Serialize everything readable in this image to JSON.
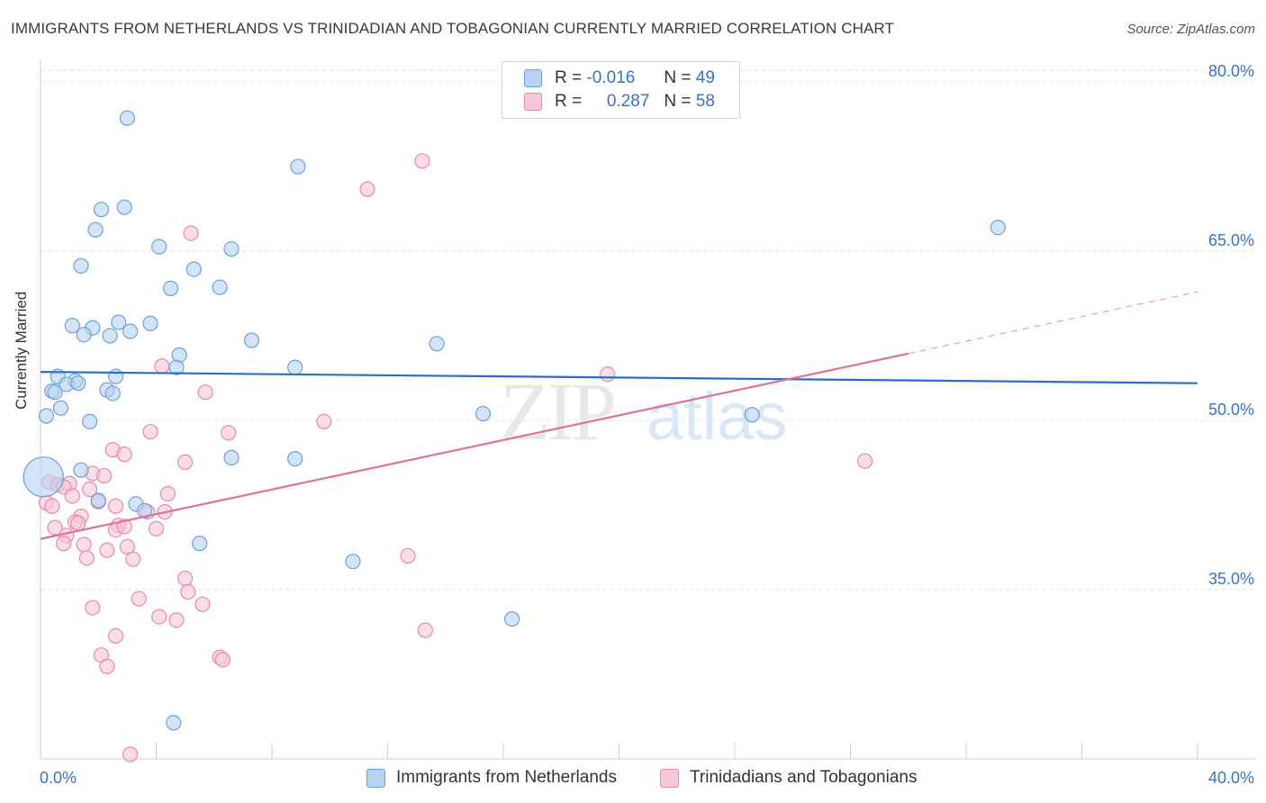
{
  "title": "IMMIGRANTS FROM NETHERLANDS VS TRINIDADIAN AND TOBAGONIAN CURRENTLY MARRIED CORRELATION CHART",
  "source": "Source: ZipAtlas.com",
  "watermark": {
    "zip": "ZIP",
    "atlas": "atlas"
  },
  "legend": {
    "r_label": "R =",
    "n_label": "N =",
    "series1": {
      "r": "-0.016",
      "n": "49"
    },
    "series2": {
      "r": "0.287",
      "n": "58"
    }
  },
  "colors": {
    "blue_fill": "#b8d2f2",
    "blue_stroke": "#6f9fdb",
    "blue_line": "#2a6fc7",
    "pink_fill": "#f8c6d6",
    "pink_stroke": "#e889a8",
    "pink_line": "#e0729a",
    "tick_label": "#3a72c8",
    "grid": "#e3e3e3"
  },
  "chart_data": {
    "type": "scatter",
    "title": "IMMIGRANTS FROM NETHERLANDS VS TRINIDADIAN AND TOBAGONIAN CURRENTLY MARRIED CORRELATION CHART",
    "ylabel": "Currently Married",
    "xlabel": "",
    "xlim": [
      0,
      40
    ],
    "ylim": [
      20,
      82
    ],
    "x_tick_labels": [
      "0.0%",
      "40.0%"
    ],
    "y_ticks": [
      35,
      50,
      65,
      80
    ],
    "y_tick_labels": [
      "35.0%",
      "50.0%",
      "65.0%",
      "80.0%"
    ],
    "grid": true,
    "series": [
      {
        "name": "Immigrants from Netherlands",
        "r": -0.016,
        "n": 49,
        "trend": {
          "x": [
            0,
            40
          ],
          "y": [
            54.3,
            53.3
          ],
          "dashed_from": null
        },
        "points": [
          [
            0.1,
            45.0,
            "big"
          ],
          [
            3.0,
            76.8
          ],
          [
            8.9,
            72.5
          ],
          [
            2.1,
            68.7
          ],
          [
            2.9,
            68.9
          ],
          [
            1.9,
            66.9
          ],
          [
            4.1,
            65.4
          ],
          [
            6.6,
            65.2
          ],
          [
            1.4,
            63.7
          ],
          [
            5.3,
            63.4
          ],
          [
            4.5,
            61.7
          ],
          [
            6.2,
            61.8
          ],
          [
            1.1,
            58.4
          ],
          [
            1.8,
            58.2
          ],
          [
            2.7,
            58.7
          ],
          [
            3.8,
            58.6
          ],
          [
            3.1,
            57.9
          ],
          [
            1.5,
            57.6
          ],
          [
            2.4,
            57.5
          ],
          [
            7.3,
            57.1
          ],
          [
            13.7,
            56.8
          ],
          [
            4.8,
            55.8
          ],
          [
            4.7,
            54.7
          ],
          [
            8.8,
            54.7
          ],
          [
            0.6,
            53.9
          ],
          [
            2.6,
            53.9
          ],
          [
            1.2,
            53.5
          ],
          [
            0.9,
            53.2
          ],
          [
            0.4,
            52.6
          ],
          [
            0.5,
            52.5
          ],
          [
            2.3,
            52.7
          ],
          [
            2.5,
            52.4
          ],
          [
            0.7,
            51.1
          ],
          [
            0.2,
            50.4
          ],
          [
            1.7,
            49.9
          ],
          [
            15.3,
            50.6
          ],
          [
            24.6,
            50.5
          ],
          [
            6.6,
            46.7
          ],
          [
            8.8,
            46.6
          ],
          [
            1.4,
            45.6
          ],
          [
            2.0,
            42.9
          ],
          [
            3.3,
            42.6
          ],
          [
            3.6,
            42.0
          ],
          [
            5.5,
            39.1
          ],
          [
            10.8,
            37.5
          ],
          [
            16.3,
            32.4
          ],
          [
            4.6,
            23.2
          ],
          [
            33.1,
            67.1
          ],
          [
            1.3,
            53.3
          ]
        ]
      },
      {
        "name": "Trinidadians and Tobagonians",
        "r": 0.287,
        "n": 58,
        "trend": {
          "x": [
            0,
            40
          ],
          "y": [
            39.5,
            61.4
          ],
          "dashed_from": 30
        },
        "points": [
          [
            13.2,
            73.0
          ],
          [
            11.3,
            70.5
          ],
          [
            5.2,
            66.6
          ],
          [
            4.2,
            54.8
          ],
          [
            19.6,
            54.1
          ],
          [
            5.7,
            52.5
          ],
          [
            9.8,
            49.9
          ],
          [
            3.8,
            49.0
          ],
          [
            6.5,
            48.9
          ],
          [
            2.5,
            47.4
          ],
          [
            2.9,
            47.0
          ],
          [
            5.0,
            46.3
          ],
          [
            28.5,
            46.4
          ],
          [
            1.8,
            45.3
          ],
          [
            2.2,
            45.1
          ],
          [
            0.3,
            44.5
          ],
          [
            0.6,
            44.3
          ],
          [
            1.0,
            44.4
          ],
          [
            0.8,
            44.1
          ],
          [
            1.7,
            43.9
          ],
          [
            4.4,
            43.5
          ],
          [
            1.1,
            43.3
          ],
          [
            0.2,
            42.7
          ],
          [
            0.4,
            42.4
          ],
          [
            2.6,
            42.4
          ],
          [
            2.0,
            42.8
          ],
          [
            3.7,
            41.9
          ],
          [
            1.4,
            41.5
          ],
          [
            4.3,
            41.9
          ],
          [
            1.2,
            41.0
          ],
          [
            2.7,
            40.7
          ],
          [
            2.6,
            40.3
          ],
          [
            0.5,
            40.5
          ],
          [
            4.0,
            40.4
          ],
          [
            0.9,
            39.8
          ],
          [
            0.8,
            39.1
          ],
          [
            1.5,
            39.0
          ],
          [
            3.0,
            38.8
          ],
          [
            2.3,
            38.5
          ],
          [
            1.6,
            37.8
          ],
          [
            3.2,
            37.7
          ],
          [
            12.7,
            38.0
          ],
          [
            5.0,
            36.0
          ],
          [
            5.1,
            34.8
          ],
          [
            3.4,
            34.2
          ],
          [
            5.6,
            33.7
          ],
          [
            1.8,
            33.4
          ],
          [
            4.1,
            32.6
          ],
          [
            4.7,
            32.3
          ],
          [
            13.3,
            31.4
          ],
          [
            2.6,
            30.9
          ],
          [
            2.1,
            29.2
          ],
          [
            6.2,
            29.0
          ],
          [
            6.3,
            28.8
          ],
          [
            2.3,
            28.2
          ],
          [
            3.1,
            20.4
          ],
          [
            1.3,
            40.9
          ],
          [
            2.9,
            40.6
          ]
        ]
      }
    ]
  },
  "bottom_legend": {
    "series1": "Immigrants from Netherlands",
    "series2": "Trinidadians and Tobagonians"
  }
}
